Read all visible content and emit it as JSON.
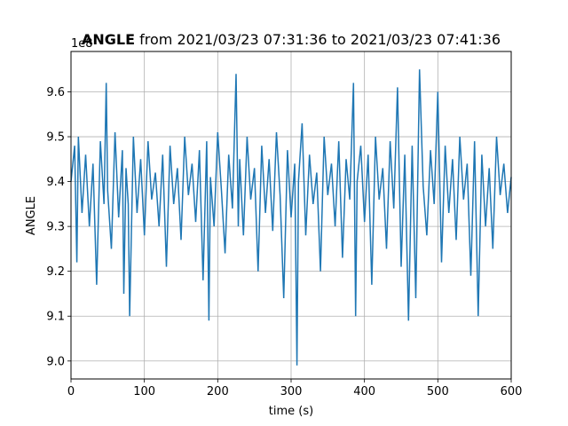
{
  "chart_data": {
    "type": "line",
    "title_bold": "ANGLE",
    "title_rest": " from 2021/03/23 07:31:36 to 2021/03/23 07:41:36",
    "xlabel": "time (s)",
    "ylabel": "ANGLE",
    "y_offset_label": "1e8",
    "xlim": [
      0,
      600
    ],
    "ylim": [
      8.96,
      9.69
    ],
    "x_ticks": [
      0,
      100,
      200,
      300,
      400,
      500,
      600
    ],
    "y_ticks": [
      9.0,
      9.1,
      9.2,
      9.3,
      9.4,
      9.5,
      9.6
    ],
    "grid": true,
    "line_color": "#1f77b4",
    "series": [
      {
        "x": [
          0,
          5,
          8,
          10,
          15,
          20,
          25,
          30,
          35,
          40,
          45,
          48,
          50,
          55,
          60,
          65,
          70,
          72,
          75,
          78,
          80,
          85,
          90,
          95,
          100,
          105,
          110,
          115,
          120,
          125,
          130,
          135,
          140,
          145,
          150,
          155,
          160,
          165,
          170,
          175,
          180,
          185,
          188,
          190,
          195,
          200,
          205,
          210,
          215,
          220,
          225,
          228,
          230,
          235,
          240,
          245,
          250,
          255,
          260,
          265,
          270,
          275,
          280,
          285,
          290,
          295,
          300,
          305,
          308,
          310,
          315,
          320,
          325,
          330,
          335,
          340,
          345,
          350,
          355,
          360,
          365,
          370,
          375,
          380,
          385,
          388,
          390,
          395,
          400,
          405,
          410,
          415,
          420,
          425,
          430,
          435,
          440,
          445,
          450,
          455,
          460,
          465,
          470,
          475,
          480,
          485,
          490,
          495,
          500,
          505,
          510,
          515,
          520,
          525,
          530,
          535,
          540,
          545,
          550,
          555,
          560,
          565,
          570,
          575,
          580,
          585,
          590,
          595,
          600
        ],
        "y": [
          9.4,
          9.48,
          9.22,
          9.5,
          9.33,
          9.46,
          9.3,
          9.44,
          9.17,
          9.49,
          9.35,
          9.62,
          9.38,
          9.25,
          9.51,
          9.32,
          9.47,
          9.15,
          9.43,
          9.35,
          9.1,
          9.5,
          9.33,
          9.45,
          9.28,
          9.49,
          9.36,
          9.42,
          9.3,
          9.46,
          9.21,
          9.48,
          9.35,
          9.43,
          9.27,
          9.5,
          9.37,
          9.44,
          9.31,
          9.47,
          9.18,
          9.49,
          9.09,
          9.41,
          9.3,
          9.51,
          9.38,
          9.24,
          9.46,
          9.34,
          9.64,
          9.3,
          9.45,
          9.28,
          9.5,
          9.36,
          9.43,
          9.2,
          9.48,
          9.33,
          9.45,
          9.29,
          9.51,
          9.37,
          9.14,
          9.47,
          9.32,
          9.44,
          8.99,
          9.4,
          9.53,
          9.28,
          9.46,
          9.35,
          9.42,
          9.2,
          9.5,
          9.37,
          9.44,
          9.3,
          9.49,
          9.23,
          9.45,
          9.36,
          9.62,
          9.1,
          9.4,
          9.48,
          9.31,
          9.46,
          9.17,
          9.5,
          9.36,
          9.43,
          9.25,
          9.49,
          9.34,
          9.61,
          9.21,
          9.46,
          9.09,
          9.48,
          9.14,
          9.65,
          9.39,
          9.28,
          9.47,
          9.35,
          9.6,
          9.22,
          9.48,
          9.33,
          9.45,
          9.27,
          9.5,
          9.36,
          9.44,
          9.19,
          9.49,
          9.1,
          9.46,
          9.3,
          9.43,
          9.25,
          9.5,
          9.37,
          9.44,
          9.33,
          9.41
        ]
      }
    ]
  }
}
